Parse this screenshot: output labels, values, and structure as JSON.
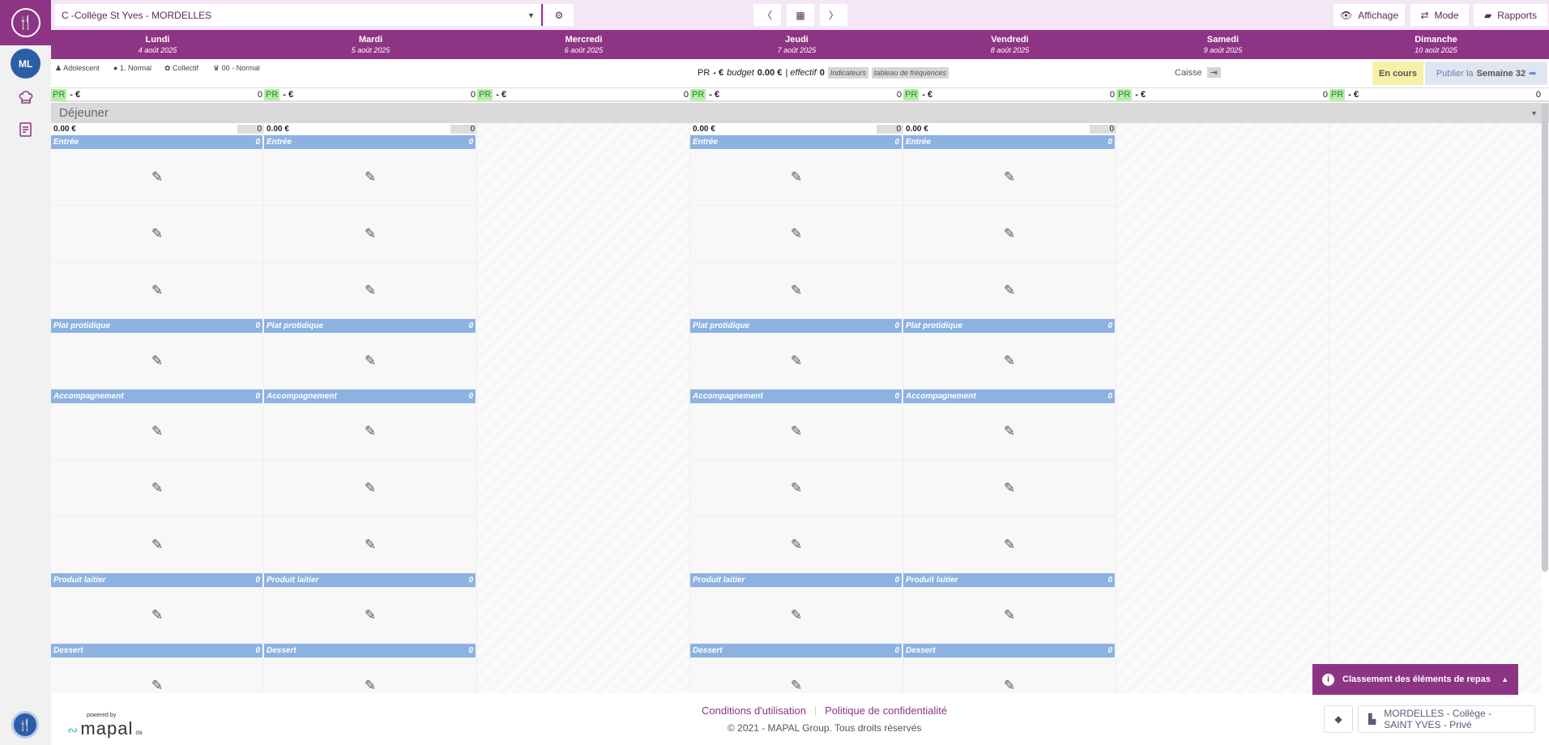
{
  "sidebar": {
    "avatar": "ML",
    "icons": [
      "chef-hat-icon",
      "document-icon"
    ]
  },
  "topbar": {
    "site_select": "C -Collège St Yves - MORDELLES",
    "affichage": "Affichage",
    "mode": "Mode",
    "rapports": "Rapports"
  },
  "days": [
    {
      "name": "Lundi",
      "date": "4 août 2025",
      "active": true
    },
    {
      "name": "Mardi",
      "date": "5 août 2025",
      "active": true
    },
    {
      "name": "Mercredi",
      "date": "6 août 2025",
      "active": false
    },
    {
      "name": "Jeudi",
      "date": "7 août 2025",
      "active": true
    },
    {
      "name": "Vendredi",
      "date": "8 août 2025",
      "active": true
    },
    {
      "name": "Samedi",
      "date": "9 août 2025",
      "active": false
    },
    {
      "name": "Dimanche",
      "date": "10 août 2025",
      "active": false
    }
  ],
  "info": {
    "tags": [
      "Adolescent",
      "1. Normal",
      "Collectif",
      "00 - Normal"
    ],
    "pr": "PR",
    "pr_value": "- €",
    "budget_label": "budget",
    "budget_value": "0.00 €",
    "effectif_label": "| effectif",
    "effectif_value": "0",
    "indicateurs": "Indicateurs",
    "frequences": "tableau de fréquences",
    "caisse": "Caisse",
    "status": "En cours",
    "publish_prefix": "Publier la",
    "publish_week": "Semaine 32"
  },
  "pr_row": {
    "badge": "PR",
    "value": "- €",
    "count": "0"
  },
  "meal": {
    "name": "Déjeuner",
    "summary_value": "0.00 €",
    "summary_count": "0",
    "sections": [
      {
        "label": "Entrée",
        "count": "0",
        "cells": 3
      },
      {
        "label": "Plat protidique",
        "count": "0",
        "cells": 1
      },
      {
        "label": "Accompagnement",
        "count": "0",
        "cells": 3
      },
      {
        "label": "Produit laitier",
        "count": "0",
        "cells": 1
      },
      {
        "label": "Dessert",
        "count": "0",
        "cells": 1
      }
    ]
  },
  "classement": "Classement des éléments de repas",
  "footer": {
    "powered_by": "powered by",
    "brand": "mapal",
    "brand_suffix": "os",
    "terms": "Conditions d'utilisation",
    "separator": "|",
    "privacy": "Politique de confidentialité",
    "copyright": "© 2021 - MAPAL Group. Tous droits réservés",
    "location": "MORDELLES - Collège - SAINT YVES - Privé"
  },
  "colors": {
    "brand": "#8e3485",
    "section": "#8cb2e2",
    "avatar": "#2c5ea8",
    "pr_badge": "#b3f0a6",
    "status": "#f9f0a8",
    "publish": "#dfe6f2"
  }
}
